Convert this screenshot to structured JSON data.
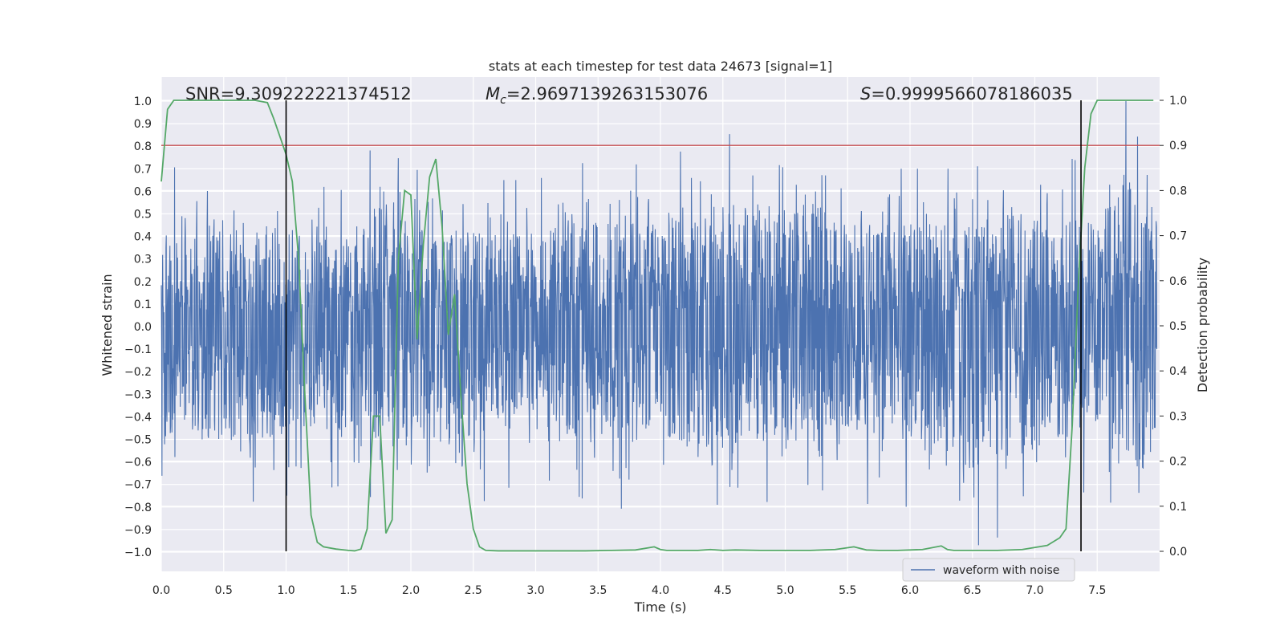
{
  "chart_data": {
    "type": "line",
    "title": "stats at each timestep for test data 24673 [signal=1]",
    "xlabel": "Time (s)",
    "ylabel_left": "Whitened strain",
    "ylabel_right": "Detection probability",
    "xlim": [
      0.0,
      8.0
    ],
    "ylim_left": [
      -1.08,
      1.1
    ],
    "ylim_right": [
      -0.04,
      1.04
    ],
    "x_ticks": [
      0.0,
      0.5,
      1.0,
      1.5,
      2.0,
      2.5,
      3.0,
      3.5,
      4.0,
      4.5,
      5.0,
      5.5,
      6.0,
      6.5,
      7.0,
      7.5
    ],
    "x_tick_labels": [
      "0.0",
      "0.5",
      "1.0",
      "1.5",
      "2.0",
      "2.5",
      "3.0",
      "3.5",
      "4.0",
      "4.5",
      "5.0",
      "5.5",
      "6.0",
      "6.5",
      "7.0",
      "7.5"
    ],
    "y_left_ticks": [
      1.0,
      0.9,
      0.8,
      0.7,
      0.6,
      0.5,
      0.4,
      0.3,
      0.2,
      0.1,
      0.0,
      -0.1,
      -0.2,
      -0.3,
      -0.4,
      -0.5,
      -0.6,
      -0.7,
      -0.8,
      -0.9,
      -1.0
    ],
    "y_left_tick_labels": [
      "1.0",
      "0.9",
      "0.8",
      "0.7",
      "0.6",
      "0.5",
      "0.4",
      "0.3",
      "0.2",
      "0.1",
      "0.0",
      "−0.1",
      "−0.2",
      "−0.3",
      "−0.4",
      "−0.5",
      "−0.6",
      "−0.7",
      "−0.8",
      "−0.9",
      "−1.0"
    ],
    "y_right_ticks": [
      1.0,
      0.9,
      0.8,
      0.7,
      0.6,
      0.5,
      0.4,
      0.3,
      0.2,
      0.1,
      0.0
    ],
    "y_right_tick_labels": [
      "1.0",
      "0.9",
      "0.8",
      "0.7",
      "0.6",
      "0.5",
      "0.4",
      "0.3",
      "0.2",
      "0.1",
      "0.0"
    ],
    "grid": true,
    "legend": {
      "position": "lower-right",
      "entries": [
        "waveform with noise"
      ]
    },
    "annotations": {
      "snr": "SNR=9.309222221374512",
      "mc_symbol": "M",
      "mc_subscript": "c",
      "mc_value": "=2.9697139263153076",
      "s_symbol": "S",
      "s_value": "=0.9999566078186035"
    },
    "threshold": {
      "y_right": 0.9,
      "color": "#c44e52"
    },
    "vertical_lines": [
      1.0,
      7.37
    ],
    "colors": {
      "waveform": "#4c72b0",
      "probability": "#55a868",
      "threshold": "#c44e52",
      "background": "#eaeaf2",
      "vlines": "#000000"
    },
    "series": [
      {
        "name": "waveform with noise",
        "axis": "left",
        "description_only": false,
        "peak_envelope": {
          "x": [
            0.0,
            0.2,
            0.5,
            1.0,
            1.5,
            1.72,
            2.0,
            2.5,
            3.0,
            3.5,
            4.0,
            4.42,
            5.0,
            5.2,
            5.5,
            6.0,
            6.5,
            6.95,
            7.5,
            7.7,
            7.85,
            8.0
          ],
          "upper": [
            0.6,
            0.8,
            0.65,
            0.65,
            0.6,
            0.83,
            0.7,
            0.65,
            0.65,
            0.75,
            0.7,
            0.9,
            0.7,
            0.89,
            0.7,
            0.7,
            0.7,
            0.82,
            0.7,
            1.0,
            1.0,
            0.8
          ],
          "lower": [
            -0.66,
            -0.72,
            -0.8,
            -0.75,
            -0.7,
            -0.77,
            -0.78,
            -0.8,
            -0.65,
            -0.8,
            -0.82,
            -0.95,
            -0.72,
            -0.7,
            -0.78,
            -0.8,
            -0.98,
            -0.88,
            -0.7,
            -0.85,
            -0.98,
            -0.6
          ]
        }
      },
      {
        "name": "",
        "axis": "right",
        "x": [
          0.0,
          0.05,
          0.1,
          0.15,
          0.25,
          0.35,
          0.45,
          0.55,
          0.65,
          0.75,
          0.85,
          0.9,
          0.95,
          1.0,
          1.05,
          1.1,
          1.15,
          1.2,
          1.25,
          1.3,
          1.4,
          1.5,
          1.55,
          1.6,
          1.65,
          1.7,
          1.75,
          1.8,
          1.85,
          1.9,
          1.95,
          2.0,
          2.05,
          2.1,
          2.15,
          2.2,
          2.25,
          2.3,
          2.35,
          2.4,
          2.45,
          2.5,
          2.55,
          2.6,
          2.7,
          2.8,
          3.0,
          3.2,
          3.4,
          3.6,
          3.8,
          3.95,
          4.0,
          4.05,
          4.15,
          4.3,
          4.4,
          4.5,
          4.6,
          4.8,
          5.0,
          5.2,
          5.4,
          5.55,
          5.65,
          5.75,
          5.9,
          6.1,
          6.25,
          6.3,
          6.35,
          6.5,
          6.7,
          6.9,
          7.1,
          7.2,
          7.25,
          7.3,
          7.35,
          7.4,
          7.45,
          7.5,
          7.55,
          7.7,
          7.85,
          7.95
        ],
        "y": [
          0.82,
          0.98,
          1.0,
          1.0,
          1.0,
          1.0,
          1.0,
          1.0,
          1.0,
          1.0,
          0.995,
          0.96,
          0.92,
          0.88,
          0.82,
          0.65,
          0.35,
          0.08,
          0.02,
          0.01,
          0.005,
          0.002,
          0.001,
          0.005,
          0.05,
          0.3,
          0.3,
          0.04,
          0.07,
          0.65,
          0.8,
          0.79,
          0.47,
          0.68,
          0.83,
          0.87,
          0.72,
          0.48,
          0.57,
          0.35,
          0.15,
          0.05,
          0.01,
          0.002,
          0.001,
          0.001,
          0.001,
          0.001,
          0.001,
          0.002,
          0.003,
          0.01,
          0.004,
          0.002,
          0.002,
          0.002,
          0.004,
          0.002,
          0.003,
          0.002,
          0.002,
          0.002,
          0.004,
          0.01,
          0.003,
          0.002,
          0.002,
          0.004,
          0.012,
          0.004,
          0.002,
          0.002,
          0.002,
          0.004,
          0.013,
          0.03,
          0.05,
          0.28,
          0.6,
          0.85,
          0.97,
          1.0,
          1.0,
          1.0,
          1.0,
          1.0
        ]
      }
    ]
  }
}
